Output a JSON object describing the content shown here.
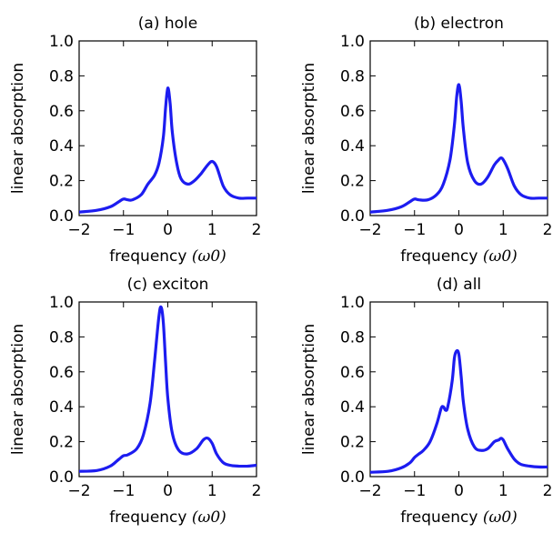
{
  "colors": {
    "curve": "#1c1cf0",
    "axes": "#000000",
    "background": "#ffffff"
  },
  "chart_data": [
    {
      "type": "line",
      "title": "(a) hole",
      "xlabel": "frequency",
      "xlabel_unit": "(ω0)",
      "ylabel": "linear absorption",
      "xlim": [
        -2,
        2
      ],
      "ylim": [
        0,
        1
      ],
      "xticks": [
        "−2",
        "−1",
        "0",
        "1",
        "2"
      ],
      "yticks": [
        "0.0",
        "0.2",
        "0.4",
        "0.6",
        "0.8",
        "1.0"
      ],
      "series": [
        {
          "x": [
            -2.0,
            -1.6,
            -1.3,
            -1.1,
            -1.0,
            -0.9,
            -0.8,
            -0.6,
            -0.45,
            -0.3,
            -0.2,
            -0.1,
            -0.05,
            0.0,
            0.05,
            0.1,
            0.2,
            0.3,
            0.45,
            0.6,
            0.75,
            0.9,
            1.0,
            1.1,
            1.25,
            1.4,
            1.6,
            1.8,
            2.0
          ],
          "y": [
            0.02,
            0.03,
            0.05,
            0.08,
            0.095,
            0.09,
            0.09,
            0.12,
            0.18,
            0.23,
            0.3,
            0.45,
            0.62,
            0.73,
            0.65,
            0.48,
            0.3,
            0.21,
            0.18,
            0.2,
            0.24,
            0.29,
            0.31,
            0.28,
            0.17,
            0.12,
            0.1,
            0.1,
            0.1
          ]
        }
      ]
    },
    {
      "type": "line",
      "title": "(b) electron",
      "xlabel": "frequency",
      "xlabel_unit": "(ω0)",
      "ylabel": "linear absorption",
      "xlim": [
        -2,
        2
      ],
      "ylim": [
        0,
        1
      ],
      "xticks": [
        "−2",
        "−1",
        "0",
        "1",
        "2"
      ],
      "yticks": [
        "0.0",
        "0.2",
        "0.4",
        "0.6",
        "0.8",
        "1.0"
      ],
      "series": [
        {
          "x": [
            -2.0,
            -1.6,
            -1.3,
            -1.1,
            -1.0,
            -0.9,
            -0.7,
            -0.5,
            -0.35,
            -0.2,
            -0.1,
            -0.05,
            0.0,
            0.05,
            0.1,
            0.2,
            0.35,
            0.5,
            0.65,
            0.8,
            0.9,
            0.95,
            1.0,
            1.1,
            1.25,
            1.4,
            1.6,
            1.8,
            2.0
          ],
          "y": [
            0.02,
            0.03,
            0.05,
            0.08,
            0.095,
            0.09,
            0.09,
            0.12,
            0.18,
            0.32,
            0.52,
            0.68,
            0.75,
            0.66,
            0.5,
            0.3,
            0.2,
            0.18,
            0.22,
            0.29,
            0.32,
            0.33,
            0.32,
            0.27,
            0.17,
            0.12,
            0.1,
            0.1,
            0.1
          ]
        }
      ]
    },
    {
      "type": "line",
      "title": "(c) exciton",
      "xlabel": "frequency",
      "xlabel_unit": "(ω0)",
      "ylabel": "linear absorption",
      "xlim": [
        -2,
        2
      ],
      "ylim": [
        0,
        1
      ],
      "xticks": [
        "−2",
        "−1",
        "0",
        "1",
        "2"
      ],
      "yticks": [
        "0.0",
        "0.2",
        "0.4",
        "0.6",
        "0.8",
        "1.0"
      ],
      "series": [
        {
          "x": [
            -2.0,
            -1.6,
            -1.3,
            -1.1,
            -1.0,
            -0.9,
            -0.7,
            -0.55,
            -0.4,
            -0.3,
            -0.2,
            -0.15,
            -0.1,
            -0.05,
            0.0,
            0.1,
            0.25,
            0.45,
            0.65,
            0.8,
            0.9,
            1.0,
            1.1,
            1.25,
            1.4,
            1.6,
            1.8,
            2.0
          ],
          "y": [
            0.03,
            0.035,
            0.06,
            0.1,
            0.12,
            0.125,
            0.16,
            0.24,
            0.42,
            0.66,
            0.92,
            0.97,
            0.88,
            0.65,
            0.45,
            0.25,
            0.15,
            0.13,
            0.16,
            0.21,
            0.22,
            0.19,
            0.13,
            0.08,
            0.065,
            0.06,
            0.06,
            0.065
          ]
        }
      ]
    },
    {
      "type": "line",
      "title": "(d) all",
      "xlabel": "frequency",
      "xlabel_unit": "(ω0)",
      "ylabel": "linear absorption",
      "xlim": [
        -2,
        2
      ],
      "ylim": [
        0,
        1
      ],
      "xticks": [
        "−2",
        "−1",
        "0",
        "1",
        "2"
      ],
      "yticks": [
        "0.0",
        "0.2",
        "0.4",
        "0.6",
        "0.8",
        "1.0"
      ],
      "series": [
        {
          "x": [
            -2.0,
            -1.6,
            -1.3,
            -1.1,
            -1.0,
            -0.9,
            -0.8,
            -0.65,
            -0.5,
            -0.4,
            -0.35,
            -0.3,
            -0.25,
            -0.15,
            -0.1,
            -0.05,
            0.0,
            0.05,
            0.1,
            0.2,
            0.35,
            0.5,
            0.65,
            0.8,
            0.9,
            0.95,
            1.0,
            1.1,
            1.25,
            1.4,
            1.6,
            1.8,
            2.0
          ],
          "y": [
            0.025,
            0.03,
            0.05,
            0.08,
            0.11,
            0.13,
            0.15,
            0.2,
            0.3,
            0.39,
            0.4,
            0.38,
            0.4,
            0.55,
            0.68,
            0.72,
            0.7,
            0.58,
            0.43,
            0.27,
            0.17,
            0.15,
            0.16,
            0.2,
            0.21,
            0.22,
            0.21,
            0.16,
            0.1,
            0.07,
            0.06,
            0.055,
            0.055
          ]
        }
      ]
    }
  ]
}
